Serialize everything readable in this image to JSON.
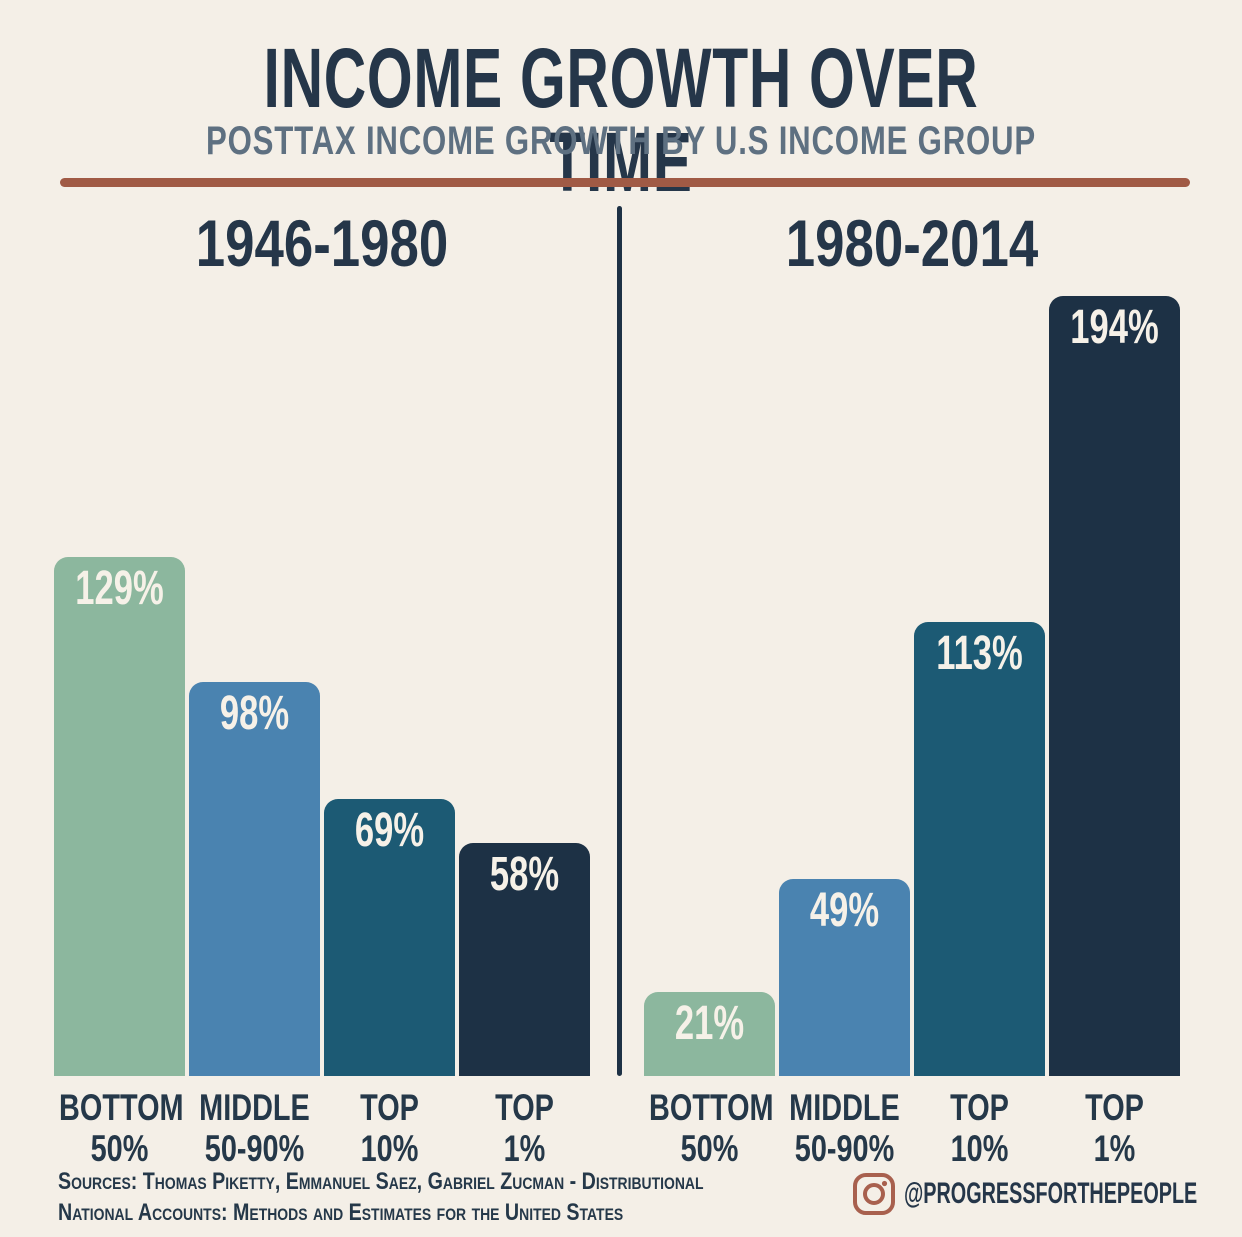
{
  "title": "INCOME GROWTH OVER TIME",
  "subtitle": "POSTTAX INCOME GROWTH BY U.S INCOME GROUP",
  "chart_data": {
    "type": "bar",
    "title": "INCOME GROWTH OVER TIME",
    "subtitle": "POSTTAX INCOME GROWTH BY U.S INCOME GROUP",
    "value_suffix": "%",
    "categories": [
      "BOTTOM\n50%",
      "MIDDLE\n50-90%",
      "TOP\n10%",
      "TOP\n1%"
    ],
    "bar_colors": [
      "#8cb79e",
      "#4a83b0",
      "#1c5a74",
      "#1d3145"
    ],
    "panels": [
      {
        "heading": "1946-1980",
        "values": [
          129,
          98,
          69,
          58
        ]
      },
      {
        "heading": "1980-2014",
        "values": [
          21,
          49,
          113,
          194
        ]
      }
    ],
    "ylim": [
      0,
      200
    ],
    "grid": false,
    "legend": "none",
    "value_labels_position": "inside-top"
  },
  "footer": {
    "sources_line1": "Sources: Thomas Piketty, Emmanuel Saez, Gabriel Zucman - Distributional",
    "sources_line2": "National Accounts: Methods and Estimates for the United States",
    "instagram_handle": "@PROGRESSFORTHEPEOPLE"
  },
  "colors": {
    "background": "#f4efe7",
    "title": "#253649",
    "subtitle": "#5e7081",
    "rule": "#a05a45",
    "divider": "#1d3145",
    "category_label": "#253849",
    "value_label": "#f6f1e8",
    "instagram": "#a8604e"
  }
}
